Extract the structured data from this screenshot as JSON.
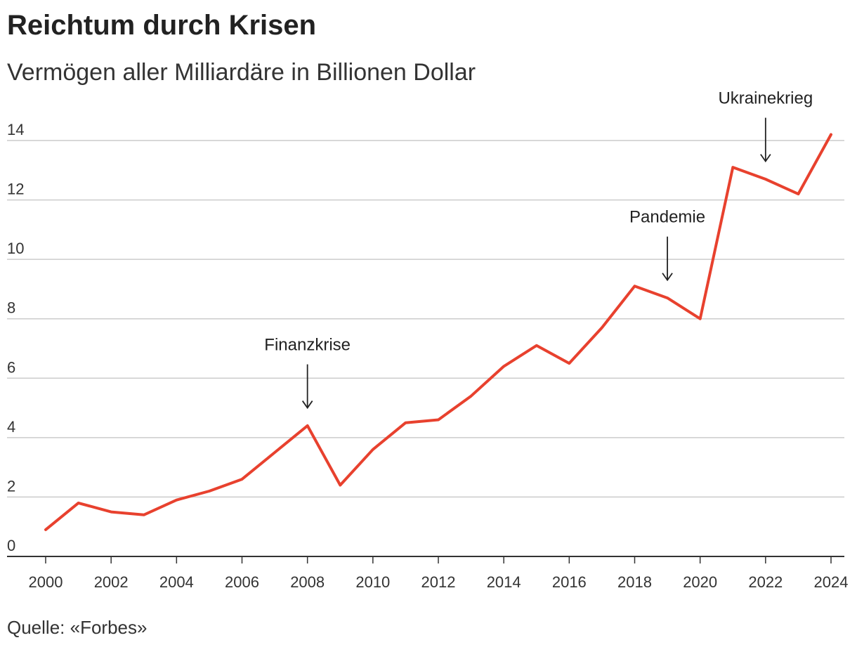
{
  "header": {
    "title": "Reichtum durch Krisen",
    "subtitle": "Vermögen aller Milliardäre in Billionen Dollar"
  },
  "footer": {
    "source": "Quelle: «Forbes»"
  },
  "colors": {
    "series": "#e8412e",
    "grid": "#cccccc",
    "axis": "#333333",
    "text": "#222222"
  },
  "chart_data": {
    "type": "line",
    "title": "Reichtum durch Krisen",
    "subtitle": "Vermögen aller Milliardäre in Billionen Dollar",
    "xlabel": "",
    "ylabel": "",
    "xlim": [
      2000,
      2024
    ],
    "ylim": [
      0,
      14
    ],
    "grid": true,
    "xticks": [
      "2000",
      "2002",
      "2004",
      "2006",
      "2008",
      "2010",
      "2012",
      "2014",
      "2016",
      "2018",
      "2020",
      "2022",
      "2024"
    ],
    "xtick_values": [
      2000,
      2002,
      2004,
      2006,
      2008,
      2010,
      2012,
      2014,
      2016,
      2018,
      2020,
      2022,
      2024
    ],
    "yticks": [
      "0",
      "2",
      "4",
      "6",
      "8",
      "10",
      "12",
      "14"
    ],
    "ytick_values": [
      0,
      2,
      4,
      6,
      8,
      10,
      12,
      14
    ],
    "series": [
      {
        "name": "Vermögen aller Milliardäre",
        "x": [
          2000,
          2001,
          2002,
          2003,
          2004,
          2005,
          2006,
          2007,
          2008,
          2009,
          2010,
          2011,
          2012,
          2013,
          2014,
          2015,
          2016,
          2017,
          2018,
          2019,
          2020,
          2021,
          2022,
          2023,
          2024
        ],
        "values": [
          0.9,
          1.8,
          1.5,
          1.4,
          1.9,
          2.2,
          2.6,
          3.5,
          4.4,
          2.4,
          3.6,
          4.5,
          4.6,
          5.4,
          6.4,
          7.1,
          6.5,
          7.7,
          9.1,
          8.7,
          8.0,
          13.1,
          12.7,
          12.2,
          14.2
        ]
      }
    ],
    "annotations": [
      {
        "label": "Finanzkrise",
        "x": 2008,
        "arrow_to": 5.0
      },
      {
        "label": "Pandemie",
        "x": 2019,
        "arrow_to": 9.3
      },
      {
        "label": "Ukrainekrieg",
        "x": 2022,
        "arrow_to": 13.3
      }
    ],
    "source": "Quelle: «Forbes»"
  }
}
